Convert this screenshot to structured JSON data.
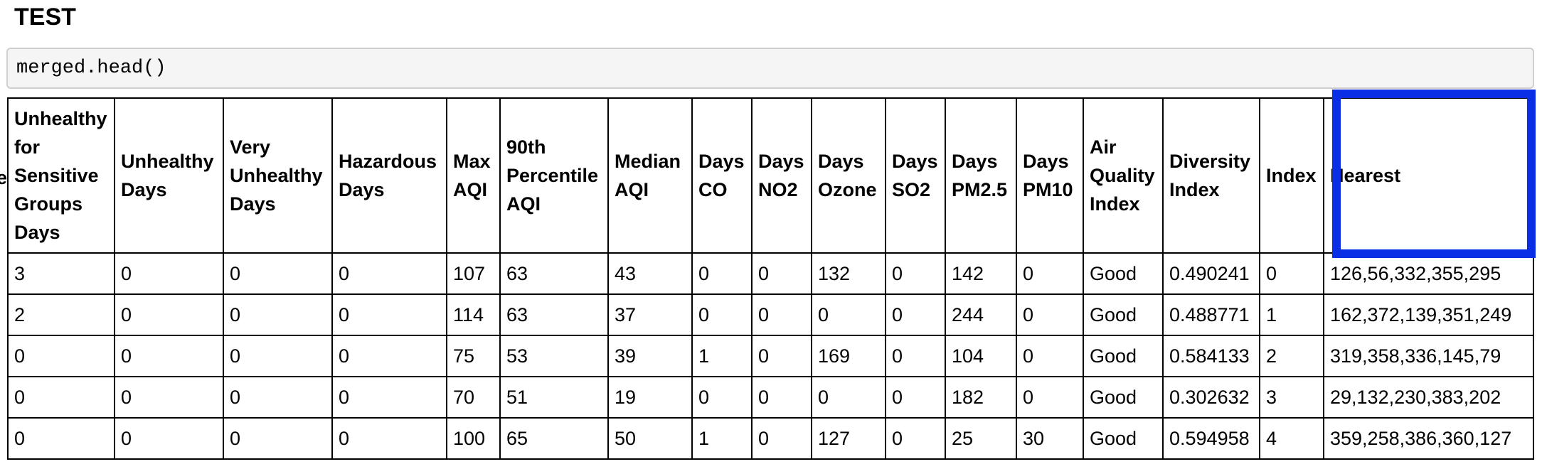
{
  "heading": "TEST",
  "code_cell": {
    "source": "merged.head()"
  },
  "clipped_header_fragment": "e",
  "table": {
    "columns": [
      "Unhealthy for Sensitive Groups Days",
      "Unhealthy Days",
      "Very Unhealthy Days",
      "Hazardous Days",
      "Max AQI",
      "90th Percentile AQI",
      "Median AQI",
      "Days CO",
      "Days NO2",
      "Days Ozone",
      "Days SO2",
      "Days PM2.5",
      "Days PM10",
      "Air Quality Index",
      "Diversity Index",
      "Index",
      "Nearest"
    ],
    "rows": [
      [
        "3",
        "0",
        "0",
        "0",
        "107",
        "63",
        "43",
        "0",
        "0",
        "132",
        "0",
        "142",
        "0",
        "Good",
        "0.490241",
        "0",
        "126,56,332,355,295"
      ],
      [
        "2",
        "0",
        "0",
        "0",
        "114",
        "63",
        "37",
        "0",
        "0",
        "0",
        "0",
        "244",
        "0",
        "Good",
        "0.488771",
        "1",
        "162,372,139,351,249"
      ],
      [
        "0",
        "0",
        "0",
        "0",
        "75",
        "53",
        "39",
        "1",
        "0",
        "169",
        "0",
        "104",
        "0",
        "Good",
        "0.584133",
        "2",
        "319,358,336,145,79"
      ],
      [
        "0",
        "0",
        "0",
        "0",
        "70",
        "51",
        "19",
        "0",
        "0",
        "0",
        "0",
        "182",
        "0",
        "Good",
        "0.302632",
        "3",
        "29,132,230,383,202"
      ],
      [
        "0",
        "0",
        "0",
        "0",
        "100",
        "65",
        "50",
        "1",
        "0",
        "127",
        "0",
        "25",
        "30",
        "Good",
        "0.594958",
        "4",
        "359,258,386,360,127"
      ]
    ]
  },
  "highlight": {
    "target_column": "Nearest",
    "color": "#0a2ee6"
  }
}
